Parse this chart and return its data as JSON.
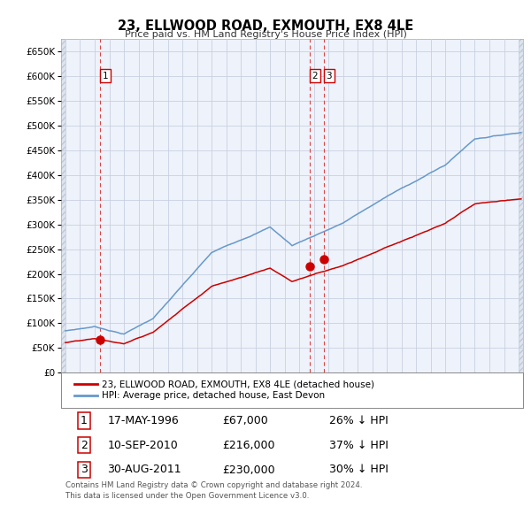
{
  "title": "23, ELLWOOD ROAD, EXMOUTH, EX8 4LE",
  "subtitle": "Price paid vs. HM Land Registry's House Price Index (HPI)",
  "yticks": [
    0,
    50000,
    100000,
    150000,
    200000,
    250000,
    300000,
    350000,
    400000,
    450000,
    500000,
    550000,
    600000,
    650000
  ],
  "xlim_start": 1993.7,
  "xlim_end": 2025.3,
  "ylim_top": 675000,
  "transactions": [
    {
      "label": "1",
      "date_str": "17-MAY-1996",
      "year": 1996.37,
      "price": 67000
    },
    {
      "label": "2",
      "date_str": "10-SEP-2010",
      "year": 2010.69,
      "price": 216000
    },
    {
      "label": "3",
      "date_str": "30-AUG-2011",
      "year": 2011.66,
      "price": 230000
    }
  ],
  "sale_color": "#cc0000",
  "hpi_color": "#6699cc",
  "vline_color": "#dd4444",
  "legend_label_sale": "23, ELLWOOD ROAD, EXMOUTH, EX8 4LE (detached house)",
  "legend_label_hpi": "HPI: Average price, detached house, East Devon",
  "footnote": "Contains HM Land Registry data © Crown copyright and database right 2024.\nThis data is licensed under the Open Government Licence v3.0.",
  "table_rows": [
    [
      "1",
      "17-MAY-1996",
      "£67,000",
      "26% ↓ HPI"
    ],
    [
      "2",
      "10-SEP-2010",
      "£216,000",
      "37% ↓ HPI"
    ],
    [
      "3",
      "30-AUG-2011",
      "£230,000",
      "30% ↓ HPI"
    ]
  ],
  "background_color": "#eef2fa",
  "grid_color": "#c8d0e0"
}
